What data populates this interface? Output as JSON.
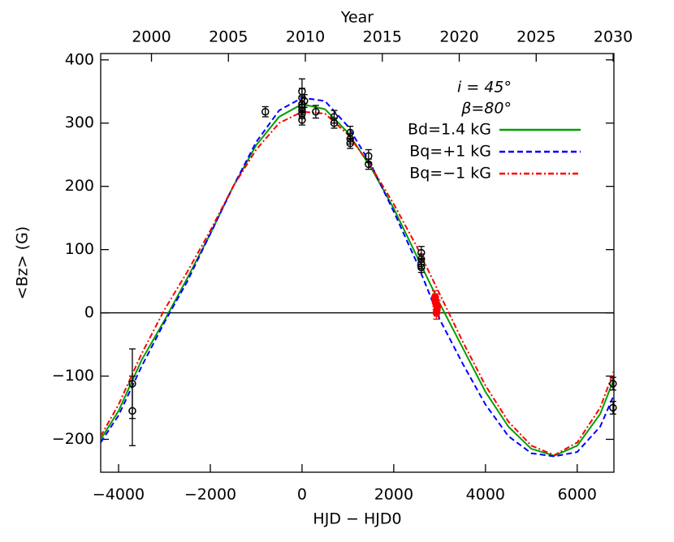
{
  "chart_data": {
    "type": "line",
    "x_label": "HJD − HJD0",
    "y_label": "<Bz> (G)",
    "x2_label": "Year",
    "annotations": [
      "i = 45°",
      "β=80°"
    ],
    "xlim": [
      -4390,
      6800
    ],
    "ylim": [
      -252,
      410
    ],
    "x2lim": [
      1996.7,
      2030.05
    ],
    "xticks": [
      {
        "value": -4000,
        "label": "−4000"
      },
      {
        "value": -2000,
        "label": "−2000"
      },
      0,
      2000,
      4000,
      6000
    ],
    "yticks": [
      {
        "value": -200,
        "label": "−200"
      },
      {
        "value": -100,
        "label": "−100"
      },
      0,
      100,
      200,
      300,
      400
    ],
    "x2ticks": [
      2000,
      2005,
      2010,
      2015,
      2020,
      2025,
      2030
    ],
    "zero_line": 0,
    "x": [
      -4390,
      -4000,
      -3500,
      -3000,
      -2500,
      -2000,
      -1500,
      -1000,
      -500,
      0,
      500,
      1000,
      1500,
      2000,
      2500,
      3000,
      3500,
      4000,
      4500,
      5000,
      5500,
      6000,
      6500,
      6800
    ],
    "series": [
      {
        "name": "Bd=1.4 kG",
        "color": "#00a000",
        "dash": "",
        "values": [
          -200,
          -155,
          -75,
          -12,
          55,
          125,
          200,
          265,
          310,
          330,
          322,
          285,
          230,
          165,
          90,
          15,
          -55,
          -125,
          -180,
          -215,
          -226,
          -210,
          -160,
          -105
        ]
      },
      {
        "name": "Bq=+1 kG",
        "color": "#0000ff",
        "dash": "7 4",
        "values": [
          -205,
          -162,
          -85,
          -15,
          50,
          125,
          200,
          270,
          320,
          340,
          335,
          295,
          235,
          160,
          80,
          -10,
          -80,
          -145,
          -195,
          -222,
          -227,
          -220,
          -180,
          -130
        ]
      },
      {
        "name": "Bq=−1 kG",
        "color": "#ff0000",
        "dash": "7 3 2 3",
        "values": [
          -195,
          -145,
          -65,
          5,
          65,
          130,
          200,
          258,
          300,
          318,
          315,
          282,
          232,
          172,
          105,
          30,
          -45,
          -115,
          -172,
          -210,
          -225,
          -205,
          -150,
          -92
        ]
      }
    ],
    "points": [
      {
        "color": "#000000",
        "filled": false,
        "x": [
          -3700,
          -3700,
          -800,
          0,
          0,
          0,
          0,
          0,
          0,
          0,
          50,
          300,
          700,
          700,
          1050,
          1050,
          1050,
          1450,
          1450,
          2600,
          2600,
          2600,
          2600,
          6780,
          6780
        ],
        "y": [
          -112,
          -155,
          318,
          320,
          330,
          340,
          350,
          305,
          315,
          325,
          335,
          318,
          310,
          300,
          285,
          275,
          268,
          248,
          235,
          95,
          85,
          78,
          72,
          -112,
          -150
        ],
        "yerr": [
          55,
          55,
          8,
          10,
          12,
          15,
          20,
          8,
          8,
          8,
          10,
          10,
          10,
          8,
          10,
          8,
          8,
          10,
          8,
          10,
          8,
          8,
          8,
          10,
          10
        ]
      },
      {
        "color": "#ff0000",
        "filled": true,
        "x": [
          2900,
          2910,
          2920,
          2930,
          2940,
          2950
        ],
        "y": [
          25,
          20,
          15,
          0,
          5,
          10
        ],
        "yerr": [
          10,
          10,
          10,
          10,
          10,
          10
        ]
      }
    ]
  }
}
